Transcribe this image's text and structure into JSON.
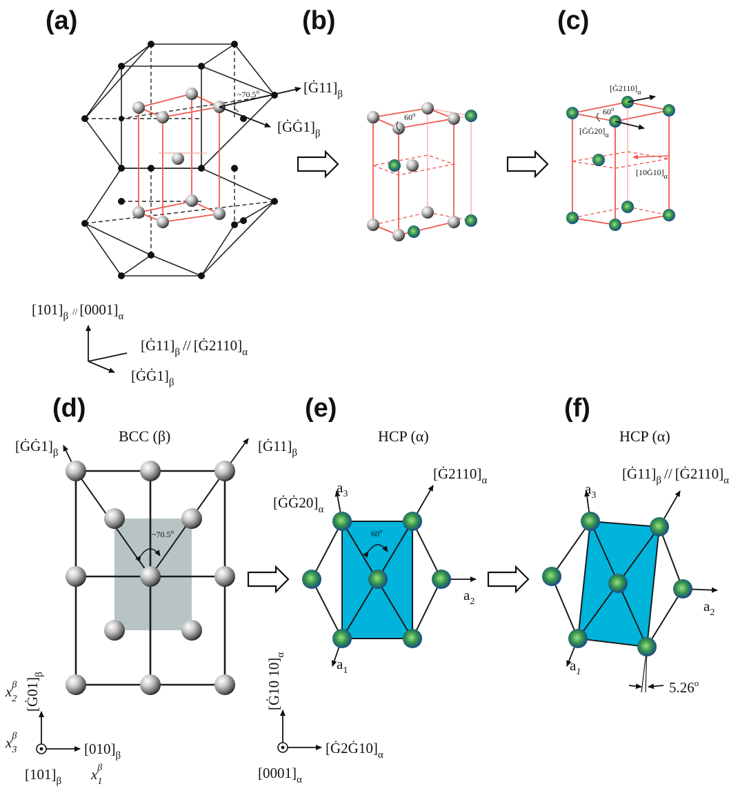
{
  "panels": {
    "a": {
      "label": "(a)",
      "angle": "~70.5",
      "dir1": "[Ġ11]",
      "dir1_sub": "β",
      "dir2": "[ĠĠ1]",
      "dir2_sub": "β",
      "axes": {
        "up": "[101]",
        "up_sub": "β",
        "up_par": "//",
        "up_b": "[0001]",
        "up_b_sub": "α",
        "right": "[Ġ11]",
        "right_sub": "β",
        "right_par": "//",
        "right_b": "[Ġ2110]",
        "right_b_sub": "α",
        "down": "[ĠĠ1]",
        "down_sub": "β"
      }
    },
    "b": {
      "label": "(b)",
      "angle": "60"
    },
    "c": {
      "label": "(c)",
      "angle": "60",
      "dir1": "[Ġ2110]",
      "dir1_sub": "α",
      "dir2": "[ĠĠ20]",
      "dir2_sub": "α",
      "dir3": "[10Ġ10]",
      "dir3_sub": "α"
    },
    "d": {
      "label": "(d)",
      "title": "BCC (β)",
      "angle": "~70.5",
      "dir_left": "[ĠĠ1]",
      "dir_left_sub": "β",
      "dir_right": "[Ġ11]",
      "dir_right_sub": "β",
      "axes": {
        "x2": "x",
        "x2_sub": "2",
        "x2_sup": "β",
        "up": "[Ġ01]",
        "up_sub": "β",
        "x3": "x",
        "x3_sub": "3",
        "x3_sup": "β",
        "right": "[010]",
        "right_sub": "β",
        "origin": "[101]",
        "origin_sub": "β",
        "x1": "x",
        "x1_sub": "1",
        "x1_sup": "β"
      }
    },
    "e": {
      "label": "(e)",
      "title": "HCP (α)",
      "angle": "60",
      "dir_right": "[Ġ2110]",
      "dir_right_sub": "α",
      "dir_left": "[ĠĠ20]",
      "dir_left_sub": "α",
      "a1": "a",
      "a1_sub": "1",
      "a2": "a",
      "a2_sub": "2",
      "a3": "a",
      "a3_sub": "3",
      "axes": {
        "up": "[Ġ10 10]",
        "up_sub": "α",
        "right": "[Ġ2Ġ10]",
        "right_sub": "α",
        "origin": "[0001]",
        "origin_sub": "α"
      }
    },
    "f": {
      "label": "(f)",
      "title": "HCP (α)",
      "dir": "[Ġ11]",
      "dir_sub": "β",
      "dir_par": "//",
      "dir_b": "[Ġ2110]",
      "dir_b_sub": "α",
      "a1": "a",
      "a1_sub": "1",
      "a2": "a",
      "a2_sub": "2",
      "a3": "a",
      "a3_sub": "3",
      "tilt": "5.26",
      "tilt_unit": "o"
    }
  },
  "colors": {
    "bcc_lattice": "#222222",
    "unit_cell_red": "#f05a50",
    "hcp_fill": "#00b4dc",
    "bcc_plane": "#b8c4c4",
    "atom_grey": "#9a9a9a",
    "atom_green": "#3a9a4a",
    "atom_blue_rim": "#1a3c8c"
  }
}
